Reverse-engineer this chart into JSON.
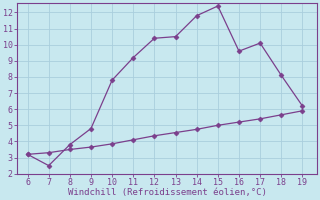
{
  "xlabel": "Windchill (Refroidissement éolien,°C)",
  "line1_x": [
    6,
    7,
    8,
    9,
    10,
    11,
    12,
    13,
    14,
    15,
    16,
    17,
    18,
    19
  ],
  "line1_y": [
    3.2,
    2.5,
    3.8,
    4.8,
    7.8,
    9.2,
    10.4,
    10.5,
    11.8,
    12.4,
    9.6,
    10.1,
    8.1,
    6.2
  ],
  "line2_x": [
    6,
    7,
    8,
    9,
    10,
    11,
    12,
    13,
    14,
    15,
    16,
    17,
    18,
    19
  ],
  "line2_y": [
    3.2,
    3.3,
    3.5,
    3.65,
    3.85,
    4.1,
    4.35,
    4.55,
    4.75,
    5.0,
    5.2,
    5.4,
    5.65,
    5.9
  ],
  "line_color": "#7b3f8c",
  "background_color": "#c8e8ef",
  "grid_color": "#aacedd",
  "axis_color": "#7b3f8c",
  "tick_label_color": "#7b3f8c",
  "xlabel_color": "#7b3f8c",
  "xlim": [
    5.5,
    19.7
  ],
  "ylim": [
    2.0,
    12.6
  ],
  "yticks": [
    2,
    3,
    4,
    5,
    6,
    7,
    8,
    9,
    10,
    11,
    12
  ],
  "xticks": [
    6,
    7,
    8,
    9,
    10,
    11,
    12,
    13,
    14,
    15,
    16,
    17,
    18,
    19
  ],
  "marker": "D",
  "markersize": 2.5,
  "linewidth": 0.9,
  "xlabel_fontsize": 6.5,
  "tick_fontsize": 6.0
}
